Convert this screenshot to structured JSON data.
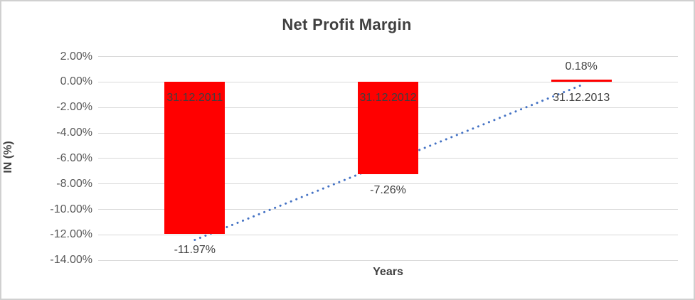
{
  "chart_data": {
    "type": "bar",
    "title": "Net Profit Margin",
    "xlabel": "Years",
    "ylabel": "IN (%)",
    "categories": [
      "31.12.2011",
      "31.12.2012",
      "31.12.2013"
    ],
    "values": [
      -11.97,
      -7.26,
      0.18
    ],
    "value_labels": [
      "-11.97%",
      "-7.26%",
      "0.18%"
    ],
    "ylim": [
      -14,
      2
    ],
    "y_tick_step": 2,
    "y_tick_labels": [
      "2.00%",
      "0.00%",
      "-2.00%",
      "-4.00%",
      "-6.00%",
      "-8.00%",
      "-10.00%",
      "-12.00%",
      "-14.00%"
    ],
    "grid": true,
    "legend": "none",
    "bar_color": "#ff0000",
    "trendline": {
      "type": "linear",
      "style": "dotted",
      "color": "#4472c4"
    }
  },
  "colors": {
    "bar": "#ff0000",
    "trendline": "#4472c4",
    "gridline": "#d9d9d9",
    "tick_text": "#595959",
    "label_text": "#404040",
    "frame_border": "#d0d0d0",
    "background": "#ffffff"
  }
}
